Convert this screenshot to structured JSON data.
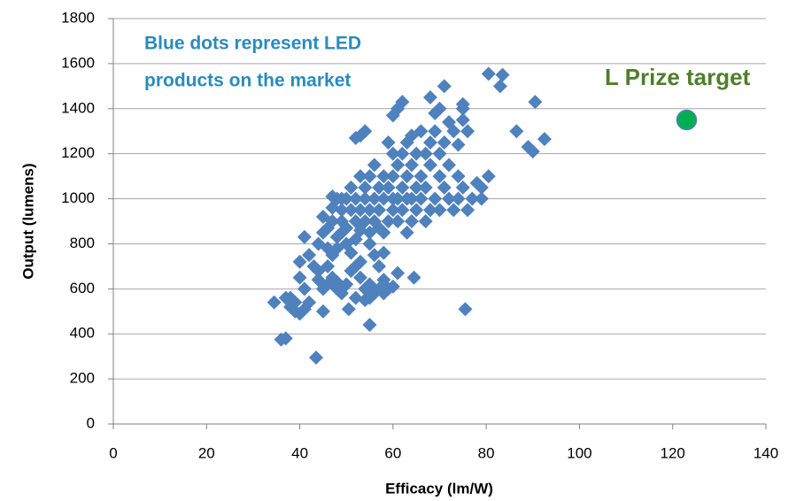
{
  "chart_data": {
    "type": "scatter",
    "xlabel": "Efficacy (lm/W)",
    "ylabel": "Output (lumens)",
    "xlim": [
      0,
      140
    ],
    "xticks": [
      0,
      20,
      40,
      60,
      80,
      100,
      120,
      140
    ],
    "ylim": [
      0,
      1800
    ],
    "yticks": [
      0,
      200,
      400,
      600,
      800,
      1000,
      1200,
      1400,
      1600,
      1800
    ],
    "grid": true,
    "annotations": [
      {
        "text": [
          "Blue dots represent LED",
          "products on the market"
        ],
        "color": "#2a8bbd"
      },
      {
        "text": [
          "L Prize target"
        ],
        "color": "#4f7f2a"
      }
    ],
    "series": [
      {
        "color": "#4f81bd",
        "marker": "diamond",
        "x": [
          34.5,
          36,
          37,
          38,
          40,
          41,
          42,
          40,
          43.5,
          45,
          50.5,
          55,
          64.5,
          75.5,
          80.5,
          83.5,
          83,
          86.5,
          89,
          90,
          90.5,
          92.5,
          71,
          68,
          75,
          75,
          76,
          79,
          80.5,
          78,
          79,
          74,
          72,
          70,
          38,
          39,
          40,
          41,
          41,
          37,
          39,
          44,
          45,
          46,
          46,
          47,
          48,
          49,
          48,
          50,
          51,
          52,
          53,
          54,
          55,
          54,
          56,
          57,
          58,
          59,
          60,
          61,
          57,
          56,
          53,
          52,
          55,
          58,
          44,
          45,
          45,
          46,
          46,
          47,
          47,
          47,
          48,
          48,
          48,
          49,
          49,
          49,
          50,
          50,
          50,
          51,
          51,
          51,
          52,
          52,
          52,
          53,
          53,
          53,
          54,
          54,
          54,
          55,
          55,
          55,
          55,
          56,
          56,
          56,
          57,
          57,
          57,
          58,
          58,
          58,
          58,
          59,
          59,
          59,
          60,
          60,
          60,
          60,
          60,
          61,
          61,
          61,
          61,
          62,
          62,
          62,
          62,
          63,
          63,
          63,
          63,
          64,
          64,
          64,
          64,
          65,
          65,
          65,
          66,
          66,
          66,
          67,
          67,
          67,
          68,
          68,
          68,
          69,
          69,
          69,
          70,
          70,
          70,
          71,
          71,
          72,
          72,
          73,
          73,
          74,
          74,
          75,
          75,
          76,
          77,
          52,
          53,
          54,
          42,
          43,
          44,
          49,
          47
        ],
        "y": [
          540,
          375,
          380,
          560,
          720,
          830,
          540,
          490,
          295,
          500,
          510,
          440,
          650,
          510,
          1555,
          1550,
          1500,
          1300,
          1230,
          1210,
          1430,
          1265,
          1500,
          1450,
          1400,
          1420,
          1300,
          1000,
          1100,
          1070,
          1050,
          1240,
          1340,
          1400,
          520,
          500,
          650,
          600,
          510,
          560,
          540,
          640,
          600,
          620,
          700,
          650,
          600,
          580,
          630,
          620,
          680,
          700,
          650,
          600,
          560,
          550,
          580,
          600,
          640,
          600,
          610,
          670,
          700,
          750,
          720,
          560,
          620,
          580,
          800,
          850,
          920,
          780,
          870,
          750,
          900,
          960,
          830,
          1000,
          780,
          850,
          950,
          900,
          800,
          1000,
          870,
          950,
          1050,
          760,
          900,
          1000,
          820,
          1100,
          950,
          860,
          1000,
          900,
          1050,
          1100,
          950,
          850,
          800,
          1000,
          1150,
          900,
          1050,
          950,
          870,
          1100,
          1000,
          850,
          760,
          900,
          1050,
          1250,
          950,
          1000,
          1100,
          1200,
          1370,
          1000,
          900,
          1150,
          1400,
          1050,
          1200,
          1430,
          950,
          1100,
          1000,
          850,
          1250,
          1000,
          900,
          1150,
          1280,
          1050,
          1200,
          950,
          1100,
          1000,
          1300,
          1200,
          900,
          1050,
          1250,
          950,
          1150,
          1300,
          1000,
          1380,
          1200,
          1100,
          950,
          1050,
          1250,
          1000,
          1150,
          950,
          1300,
          1100,
          1000,
          1350,
          1050,
          950,
          1000,
          1270,
          1280,
          1300,
          750,
          700,
          680,
          1000,
          1010
        ]
      },
      {
        "color": "#00b050",
        "marker": "circle",
        "x": [
          123
        ],
        "y": [
          1350
        ]
      }
    ]
  }
}
